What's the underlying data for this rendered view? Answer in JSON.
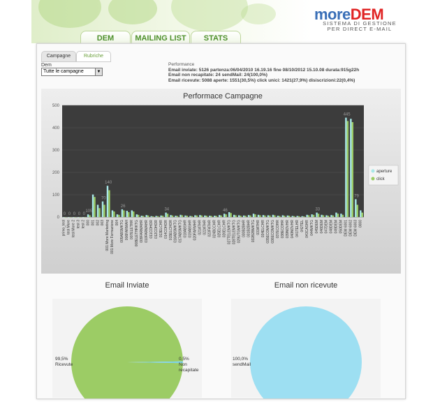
{
  "brand": {
    "logo_more": "more",
    "logo_dem": "DEM",
    "subtitle_line1": "SISTEMA DI GESTIONE",
    "subtitle_line2": "PER DIRECT E-MAIL"
  },
  "nav": {
    "tabs": [
      "DEM",
      "MAILING LIST",
      "STATS"
    ]
  },
  "subtabs": [
    "Campagne",
    "Rubriche"
  ],
  "filter": {
    "label": "Dem",
    "selected": "Tutte le campagne"
  },
  "performance": {
    "heading": "Performance",
    "line1": "Email inviate: 5126 partenza:06/04/2010 16.19.16 fine 08/10/2012 15.10.08 durata:915g22h",
    "line2": "Email non recapitate: 24 sendMail: 24(100,0%)",
    "line3": "Email ricevute: 5088 aperte: 1551(30,5%) click unici: 1421(27,9%) disiscrizioni:22(0,4%)"
  },
  "colors": {
    "accent_green": "#4d8f2b",
    "aperture": "#a9e8e8",
    "click": "#9ccc65",
    "plot_bg": "#3c3c3c"
  },
  "chart_data": [
    {
      "type": "bar",
      "title": "Performace Campagne",
      "ylim": [
        0,
        500
      ],
      "yticks": [
        0,
        100,
        200,
        300,
        400,
        500
      ],
      "legend_position": "right",
      "categories": [
        "primo_test",
        "test More",
        "test More 2",
        "test 3",
        "test 2",
        "000",
        "001",
        "002",
        "003",
        "001 More Marketing",
        "001 More Formazione",
        "004",
        "005ABSMKTG",
        "006FARMAH",
        "007ELETHR",
        "008ELETHRKTG",
        "009FARMAHR",
        "010FARMAHR",
        "011COHOR",
        "012COHOR",
        "013ELCHR",
        "014COHOR",
        "015ELCHOR",
        "016ABSMKTG",
        "017ABSMKTG",
        "018ABSHR",
        "019ABSHR",
        "020FARMHR",
        "021ATHR",
        "022ATHR",
        "023FATHR",
        "024BCCHR",
        "025ELCHR",
        "026ELCHR",
        "027TELEMKTG",
        "028TELEMKTG",
        "029UTGMKTG",
        "030B2BHR",
        "031B2BHR",
        "032B2BMKTG",
        "033ATHR",
        "034ELCHR",
        "035ECOMKTG",
        "036ECOMKTG",
        "037ECOHR",
        "038ECOHR",
        "039NOVHR",
        "040NOVHR",
        "041TELHR",
        "042TEL",
        "043CASHR",
        "044MKTG",
        "045DEM",
        "046DEM",
        "047DEM",
        "048DEM",
        "049DEM",
        "050DEM",
        "DEM 6001",
        "DEM 6002",
        "DEM 6003",
        "0000"
      ],
      "series": [
        {
          "name": "aperture",
          "values": [
            0,
            0,
            0,
            0,
            0,
            12,
            101,
            55,
            70,
            140,
            30,
            12,
            35,
            28,
            30,
            12,
            6,
            9,
            4,
            5,
            7,
            20,
            9,
            6,
            10,
            7,
            5,
            8,
            9,
            7,
            6,
            6,
            9,
            15,
            22,
            10,
            8,
            7,
            9,
            15,
            10,
            9,
            8,
            10,
            6,
            8,
            7,
            5,
            5,
            4,
            10,
            12,
            20,
            10,
            8,
            9,
            20,
            15,
            445,
            440,
            80,
            30
          ]
        },
        {
          "name": "click",
          "values": [
            0,
            0,
            0,
            0,
            0,
            8,
            90,
            40,
            55,
            120,
            25,
            10,
            30,
            22,
            25,
            10,
            5,
            7,
            3,
            4,
            6,
            15,
            7,
            5,
            8,
            6,
            4,
            7,
            7,
            6,
            5,
            5,
            7,
            12,
            18,
            8,
            6,
            6,
            7,
            12,
            8,
            7,
            7,
            8,
            5,
            6,
            6,
            4,
            4,
            3,
            8,
            10,
            15,
            8,
            6,
            7,
            15,
            10,
            430,
            425,
            55,
            20
          ]
        }
      ],
      "data_labels": [
        "0",
        "0",
        "0",
        "0",
        "0",
        "105",
        "140",
        "70",
        "445",
        "79",
        "26",
        "34",
        "46",
        "33"
      ]
    },
    {
      "type": "pie",
      "title": "Email Inviate",
      "labels": [
        "Ricevute",
        "Non recapitate"
      ],
      "values": [
        99.5,
        0.5
      ],
      "value_labels": [
        "99,5%",
        "0,5%"
      ]
    },
    {
      "type": "pie",
      "title": "Email non ricevute",
      "labels": [
        "sendMail"
      ],
      "values": [
        100.0
      ],
      "value_labels": [
        "100,0%"
      ]
    }
  ]
}
